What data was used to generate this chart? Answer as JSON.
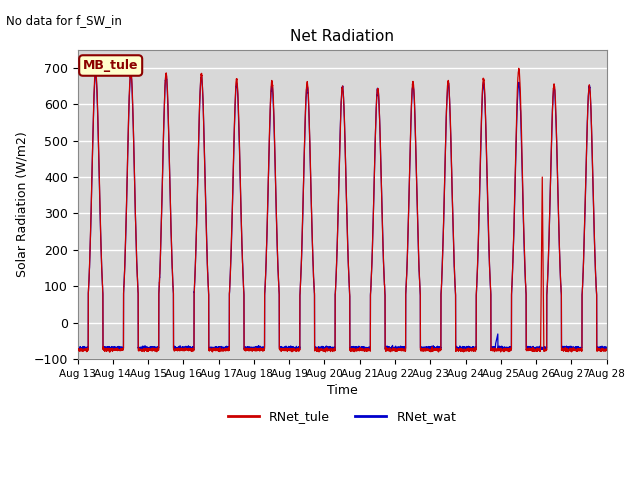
{
  "title": "Net Radiation",
  "subtitle": "No data for f_SW_in",
  "ylabel": "Solar Radiation (W/m2)",
  "xlabel": "Time",
  "ylim": [
    -100,
    750
  ],
  "x_tick_labels": [
    "Aug 13",
    "Aug 14",
    "Aug 15",
    "Aug 16",
    "Aug 17",
    "Aug 18",
    "Aug 19",
    "Aug 20",
    "Aug 21",
    "Aug 22",
    "Aug 23",
    "Aug 24",
    "Aug 25",
    "Aug 26",
    "Aug 27",
    "Aug 28"
  ],
  "legend_entries": [
    "RNet_tule",
    "RNet_wat"
  ],
  "color_tule": "#cc0000",
  "color_wat": "#0000cc",
  "mb_tule_box": "MB_tule",
  "background_color": "#d8d8d8",
  "grid_color": "#bbbbbb",
  "num_days": 15,
  "peak_height_tule": [
    695,
    690,
    685,
    682,
    670,
    665,
    660,
    648,
    645,
    660,
    665,
    670,
    695,
    655,
    650
  ],
  "peak_height_wat": [
    683,
    685,
    678,
    676,
    658,
    653,
    650,
    648,
    643,
    653,
    658,
    658,
    658,
    648,
    648
  ],
  "night_val_tule": -75,
  "night_val_wat": -70,
  "day_start": 0.3,
  "day_end": 0.72,
  "peak_sigma": 0.1
}
